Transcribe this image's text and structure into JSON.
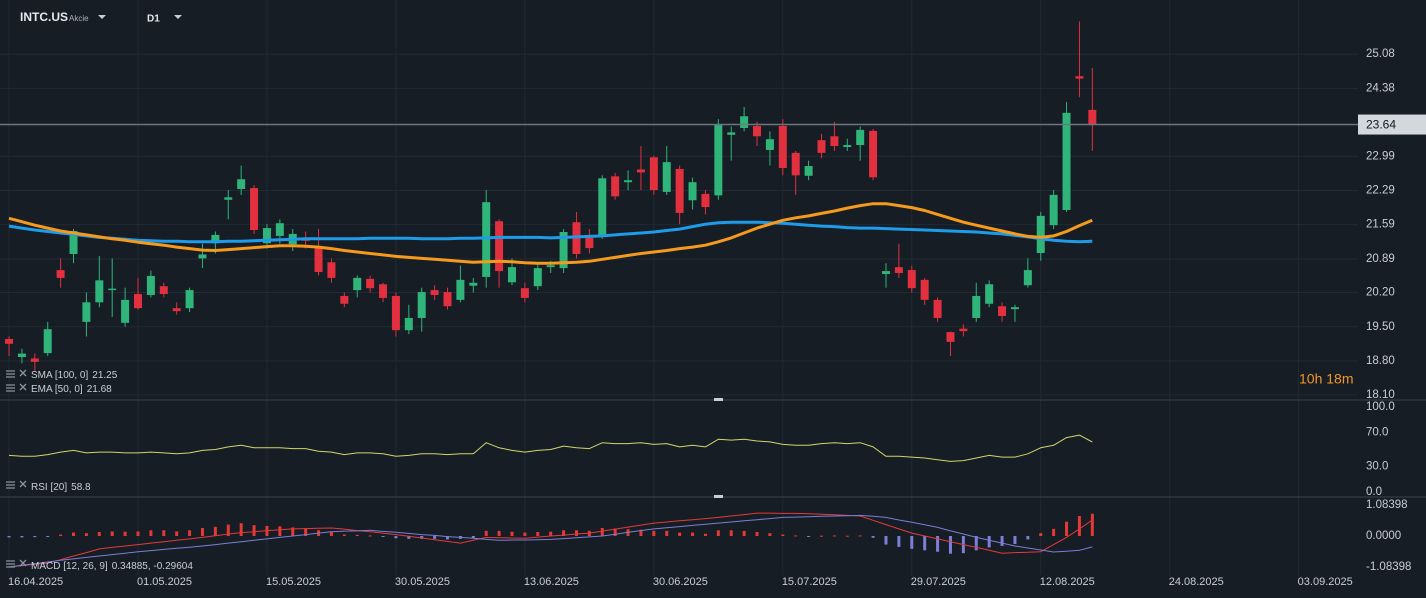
{
  "chart_data": [
    {
      "type": "candlestick",
      "symbol": "INTC.US",
      "instrument": "Akcie",
      "timeframe": "D1",
      "countdown": "10h 18m",
      "up_color": "#2fb57a",
      "down_color": "#e2303f",
      "grid": true,
      "ylim": [
        18.0,
        26.19
      ],
      "yticks": [
        25.08,
        24.38,
        22.99,
        22.29,
        21.59,
        20.89,
        {
          "value": 20.2,
          "label": "20.20"
        },
        {
          "value": 19.5,
          "label": "19.50"
        },
        {
          "value": 18.8,
          "label": "18.80"
        },
        {
          "value": 18.1,
          "label": "18.10"
        }
      ],
      "open": [
        19.25,
        18.88,
        18.85,
        18.96,
        20.66,
        20.99,
        19.6,
        20.0,
        20.25,
        19.58,
        20.17,
        20.15,
        20.33,
        19.88,
        19.88,
        20.9,
        21.21,
        22.1,
        22.32,
        22.34,
        21.21,
        21.36,
        21.19,
        21.3,
        21.15,
        20.82,
        20.13,
        20.25,
        20.48,
        20.37,
        20.13,
        19.43,
        19.68,
        20.25,
        20.21,
        20.05,
        20.34,
        20.52,
        21.66,
        20.41,
        20.29,
        20.33,
        20.72,
        20.7,
        21.64,
        21.32,
        21.36,
        22.58,
        22.46,
        22.72,
        22.97,
        22.26,
        22.73,
        22.09,
        22.22,
        22.19,
        23.43,
        23.57,
        23.61,
        23.12,
        23.61,
        23.06,
        22.59,
        23.32,
        23.4,
        23.18,
        23.22,
        23.51,
        20.58,
        20.72,
        20.66,
        20.46,
        20.05,
        19.39,
        19.46,
        19.68,
        19.97,
        19.92,
        19.86,
        20.35,
        21.01,
        21.58,
        21.89,
        24.63,
        23.94
      ],
      "high": [
        19.3,
        19.05,
        18.95,
        19.6,
        20.9,
        21.5,
        20.2,
        20.95,
        20.9,
        20.3,
        20.5,
        20.65,
        20.4,
        20.0,
        20.3,
        21.2,
        21.45,
        22.3,
        22.8,
        22.4,
        21.6,
        21.7,
        21.5,
        21.45,
        21.5,
        20.9,
        20.2,
        20.55,
        20.55,
        20.4,
        20.2,
        19.95,
        20.3,
        20.35,
        20.3,
        20.75,
        20.5,
        22.3,
        21.7,
        20.9,
        20.4,
        20.8,
        20.85,
        21.5,
        21.85,
        21.5,
        22.6,
        22.65,
        22.7,
        23.2,
        23.0,
        23.2,
        22.8,
        22.55,
        22.3,
        23.75,
        23.6,
        24.0,
        23.7,
        23.5,
        23.75,
        23.1,
        22.9,
        23.45,
        23.7,
        23.35,
        23.6,
        23.55,
        20.8,
        21.2,
        20.75,
        20.5,
        20.1,
        19.4,
        19.55,
        20.4,
        20.45,
        20.0,
        19.95,
        20.9,
        21.85,
        22.3,
        24.1,
        25.75,
        24.8
      ],
      "low": [
        18.9,
        18.75,
        18.6,
        18.9,
        20.3,
        20.8,
        19.3,
        19.9,
        19.7,
        19.5,
        19.85,
        20.1,
        20.1,
        19.75,
        19.8,
        20.7,
        21.0,
        21.7,
        22.2,
        21.4,
        21.1,
        21.2,
        21.05,
        21.1,
        20.55,
        20.4,
        19.9,
        20.1,
        20.2,
        20.0,
        19.3,
        19.35,
        19.4,
        20.05,
        19.85,
        20.0,
        20.2,
        20.3,
        20.3,
        20.35,
        20.0,
        20.25,
        20.6,
        20.6,
        20.9,
        21.0,
        21.3,
        22.1,
        22.3,
        22.3,
        22.2,
        22.2,
        21.6,
        21.9,
        21.8,
        22.1,
        22.9,
        23.5,
        23.2,
        22.8,
        22.6,
        22.2,
        22.5,
        22.95,
        23.1,
        23.1,
        22.9,
        22.5,
        20.3,
        20.5,
        20.2,
        19.95,
        19.6,
        18.9,
        19.3,
        19.6,
        19.9,
        19.6,
        19.6,
        20.3,
        20.85,
        21.5,
        21.85,
        24.2,
        23.1
      ],
      "close": [
        19.15,
        18.95,
        18.78,
        19.45,
        20.5,
        21.46,
        20.0,
        20.45,
        20.28,
        20.05,
        19.88,
        20.54,
        20.17,
        19.82,
        20.25,
        20.98,
        21.38,
        22.15,
        22.52,
        21.48,
        21.52,
        21.62,
        21.4,
        21.26,
        20.62,
        20.5,
        19.97,
        20.5,
        20.29,
        20.09,
        19.43,
        19.68,
        20.21,
        20.15,
        19.92,
        20.46,
        20.4,
        22.05,
        20.64,
        20.72,
        20.09,
        20.7,
        20.76,
        21.44,
        20.99,
        21.11,
        22.54,
        22.17,
        22.5,
        22.66,
        22.3,
        22.87,
        21.83,
        22.46,
        21.95,
        23.63,
        23.48,
        23.81,
        23.4,
        23.34,
        22.75,
        22.6,
        22.79,
        23.06,
        23.2,
        23.22,
        23.53,
        22.56,
        20.64,
        20.6,
        20.29,
        20.05,
        19.68,
        19.19,
        19.41,
        20.13,
        20.37,
        19.72,
        19.9,
        20.66,
        21.77,
        22.2,
        23.88,
        24.58,
        23.64
      ],
      "series": [
        {
          "name": "SMA [100, 0]",
          "color": "#1e9be9",
          "values": [
            21.56,
            21.52,
            21.48,
            21.45,
            21.42,
            21.39,
            21.36,
            21.33,
            21.31,
            21.29,
            21.27,
            21.26,
            21.25,
            21.25,
            21.24,
            21.24,
            21.24,
            21.25,
            21.25,
            21.26,
            21.27,
            21.28,
            21.29,
            21.3,
            21.3,
            21.3,
            21.3,
            21.3,
            21.31,
            21.31,
            21.31,
            21.31,
            21.3,
            21.3,
            21.3,
            21.31,
            21.31,
            21.32,
            21.33,
            21.33,
            21.33,
            21.33,
            21.32,
            21.33,
            21.34,
            21.35,
            21.36,
            21.38,
            21.4,
            21.42,
            21.44,
            21.47,
            21.5,
            21.55,
            21.6,
            21.63,
            21.64,
            21.64,
            21.64,
            21.63,
            21.62,
            21.6,
            21.58,
            21.56,
            21.55,
            21.53,
            21.52,
            21.52,
            21.51,
            21.5,
            21.49,
            21.48,
            21.47,
            21.46,
            21.45,
            21.44,
            21.42,
            21.4,
            21.37,
            21.34,
            21.3,
            21.27,
            21.25,
            21.24,
            21.25
          ]
        },
        {
          "name": "EMA [50, 0]",
          "color": "#f59a1d",
          "values": [
            21.72,
            21.65,
            21.58,
            21.52,
            21.46,
            21.42,
            21.38,
            21.34,
            21.3,
            21.27,
            21.23,
            21.2,
            21.17,
            21.13,
            21.1,
            21.07,
            21.06,
            21.08,
            21.1,
            21.12,
            21.14,
            21.16,
            21.16,
            21.15,
            21.13,
            21.1,
            21.06,
            21.03,
            21.0,
            20.97,
            20.94,
            20.92,
            20.9,
            20.88,
            20.86,
            20.84,
            20.82,
            20.83,
            20.84,
            20.83,
            20.81,
            20.8,
            20.8,
            20.81,
            20.82,
            20.84,
            20.88,
            20.92,
            20.96,
            21.0,
            21.03,
            21.06,
            21.1,
            21.13,
            21.17,
            21.24,
            21.32,
            21.42,
            21.52,
            21.6,
            21.68,
            21.73,
            21.77,
            21.82,
            21.87,
            21.93,
            21.98,
            22.02,
            22.02,
            21.98,
            21.94,
            21.88,
            21.8,
            21.72,
            21.64,
            21.58,
            21.52,
            21.46,
            21.4,
            21.35,
            21.33,
            21.36,
            21.45,
            21.57,
            21.68
          ]
        }
      ]
    },
    {
      "type": "line",
      "ylim": [
        0,
        100
      ],
      "yticks": [
        {
          "value": 100,
          "label": "100.0"
        },
        {
          "value": 70,
          "label": "70.0"
        },
        {
          "value": 30,
          "label": "30.0"
        },
        {
          "value": 0,
          "label": "0.0"
        }
      ],
      "series": [
        {
          "name": "RSI [20]",
          "color": "#d4d46c",
          "values": [
            43,
            42,
            42,
            44,
            47,
            49,
            46,
            47,
            47,
            46,
            46,
            47,
            46,
            45,
            46,
            49,
            50,
            53,
            55,
            52,
            52,
            52,
            51,
            51,
            48,
            47,
            44,
            46,
            46,
            45,
            42,
            43,
            45,
            45,
            44,
            45,
            45,
            58,
            52,
            49,
            47,
            49,
            50,
            54,
            52,
            51,
            58,
            57,
            57,
            58,
            56,
            57,
            53,
            55,
            53,
            62,
            61,
            62,
            60,
            59,
            56,
            55,
            55,
            57,
            58,
            57,
            58,
            53,
            42,
            42,
            41,
            40,
            38,
            36,
            37,
            40,
            43,
            41,
            41,
            45,
            52,
            55,
            64,
            67,
            58.8
          ]
        }
      ]
    },
    {
      "type": "bar",
      "legend": "MACD [12, 26, 9]",
      "legend_values": "0.34885, -0.29604",
      "up_color": "#e53935",
      "down_color": "#7b7fd8",
      "ylim": [
        -1.08398,
        1.08398
      ],
      "yticks": [
        1.08398,
        {
          "value": 0,
          "label": "0.0000"
        },
        -1.08398
      ],
      "xlim": [
        -0.7,
        104.6
      ],
      "xticks": [
        {
          "value": 0,
          "label": "16.04.2025"
        },
        {
          "value": 10,
          "label": "01.05.2025"
        },
        {
          "value": 20,
          "label": "15.05.2025"
        },
        {
          "value": 30,
          "label": "30.05.2025"
        },
        {
          "value": 40,
          "label": "13.06.2025"
        },
        {
          "value": 50,
          "label": "30.06.2025"
        },
        {
          "value": 60,
          "label": "15.07.2025"
        },
        {
          "value": 70,
          "label": "29.07.2025"
        },
        {
          "value": 80,
          "label": "12.08.2025"
        },
        {
          "value": 90,
          "label": "24.08.2025"
        },
        {
          "value": 100,
          "label": "03.09.2025"
        }
      ],
      "values": [
        -0.05,
        -0.05,
        -0.04,
        -0.02,
        0.05,
        0.12,
        0.1,
        0.14,
        0.16,
        0.15,
        0.16,
        0.2,
        0.2,
        0.16,
        0.2,
        0.28,
        0.32,
        0.4,
        0.45,
        0.38,
        0.35,
        0.34,
        0.3,
        0.27,
        0.2,
        0.14,
        0.05,
        0.04,
        0.02,
        -0.02,
        -0.08,
        -0.1,
        -0.1,
        -0.1,
        -0.12,
        -0.1,
        -0.08,
        0.18,
        0.18,
        0.15,
        0.12,
        0.14,
        0.15,
        0.2,
        0.2,
        0.18,
        0.28,
        0.26,
        0.24,
        0.22,
        0.18,
        0.18,
        0.12,
        0.12,
        0.08,
        0.2,
        0.2,
        0.18,
        0.14,
        0.1,
        0.05,
        0.02,
        -0.02,
        0.01,
        0.02,
        0.01,
        0.02,
        -0.06,
        -0.3,
        -0.38,
        -0.45,
        -0.5,
        -0.55,
        -0.62,
        -0.6,
        -0.5,
        -0.4,
        -0.35,
        -0.28,
        -0.12,
        0.1,
        0.25,
        0.5,
        0.7,
        0.78
      ],
      "series": [
        {
          "color": "#e23b3b",
          "values": [
            -1.08,
            -1.04,
            -0.99,
            -0.95,
            -0.83,
            -0.7,
            -0.58,
            -0.45,
            -0.4,
            -0.35,
            -0.3,
            -0.25,
            -0.2,
            -0.15,
            -0.1,
            -0.05,
            0.01,
            0.07,
            0.12,
            0.15,
            0.19,
            0.22,
            0.25,
            0.26,
            0.27,
            0.28,
            0.24,
            0.19,
            0.15,
            0.1,
            0.05,
            -0.01,
            -0.07,
            -0.13,
            -0.19,
            -0.25,
            -0.15,
            -0.05,
            -0.06,
            -0.07,
            -0.08,
            -0.04,
            0.0,
            0.03,
            0.07,
            0.1,
            0.17,
            0.24,
            0.31,
            0.38,
            0.45,
            0.49,
            0.53,
            0.57,
            0.61,
            0.65,
            0.7,
            0.75,
            0.8,
            0.8,
            0.79,
            0.79,
            0.78,
            0.76,
            0.74,
            0.72,
            0.7,
            0.55,
            0.4,
            0.25,
            0.1,
            0.0,
            -0.1,
            -0.2,
            -0.3,
            -0.4,
            -0.5,
            -0.6,
            -0.58,
            -0.57,
            -0.55,
            -0.3,
            -0.05,
            0.25,
            0.56
          ]
        },
        {
          "color": "#7a7fd6",
          "values": [
            -1.08,
            -1.02,
            -0.97,
            -0.91,
            -0.85,
            -0.8,
            -0.75,
            -0.7,
            -0.65,
            -0.6,
            -0.55,
            -0.51,
            -0.47,
            -0.43,
            -0.39,
            -0.35,
            -0.3,
            -0.25,
            -0.2,
            -0.15,
            -0.1,
            -0.05,
            0.0,
            0.05,
            0.1,
            0.15,
            0.17,
            0.18,
            0.2,
            0.16,
            0.13,
            0.09,
            0.05,
            0.02,
            -0.02,
            -0.05,
            -0.08,
            -0.12,
            -0.15,
            -0.14,
            -0.14,
            -0.13,
            -0.12,
            -0.09,
            -0.06,
            -0.03,
            0.0,
            0.06,
            0.13,
            0.19,
            0.25,
            0.29,
            0.33,
            0.37,
            0.41,
            0.45,
            0.49,
            0.53,
            0.57,
            0.61,
            0.65,
            0.66,
            0.67,
            0.69,
            0.7,
            0.71,
            0.72,
            0.69,
            0.65,
            0.56,
            0.48,
            0.39,
            0.3,
            0.18,
            0.07,
            -0.05,
            -0.15,
            -0.25,
            -0.35,
            -0.42,
            -0.49,
            -0.56,
            -0.53,
            -0.5,
            -0.38
          ]
        }
      ]
    }
  ]
}
